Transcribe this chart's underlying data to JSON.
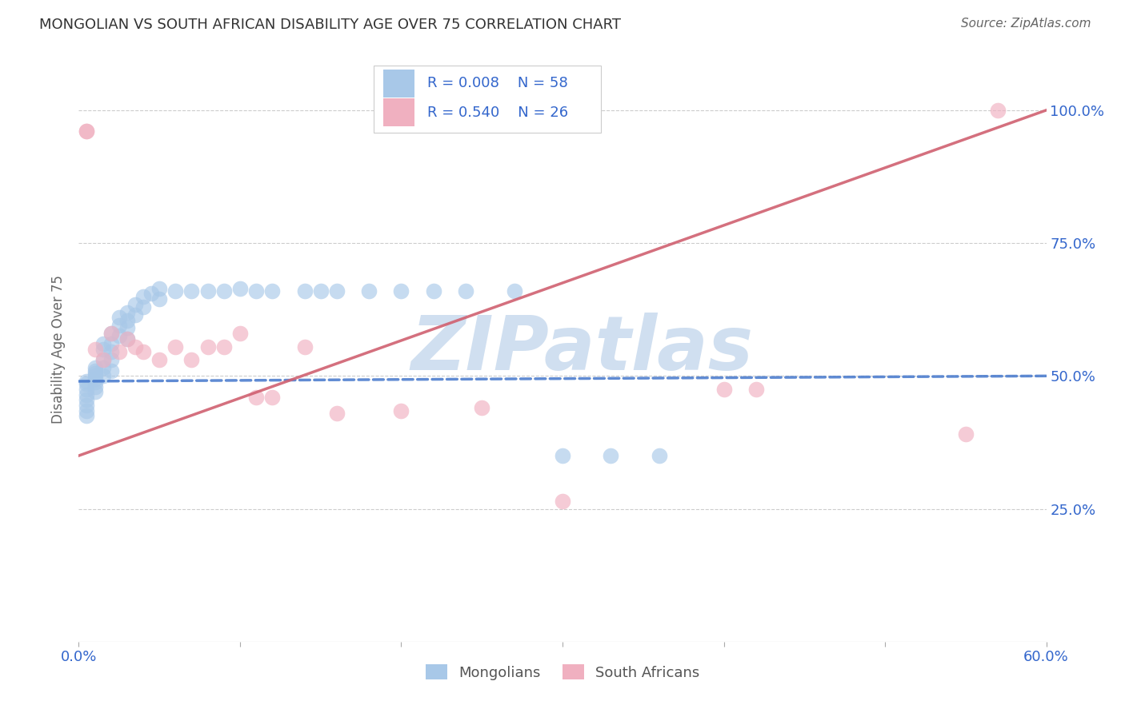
{
  "title": "MONGOLIAN VS SOUTH AFRICAN DISABILITY AGE OVER 75 CORRELATION CHART",
  "source": "Source: ZipAtlas.com",
  "ylabel": "Disability Age Over 75",
  "xlim": [
    0.0,
    0.6
  ],
  "ylim": [
    0.0,
    1.1
  ],
  "mongolian_R": 0.008,
  "mongolian_N": 58,
  "sa_R": 0.54,
  "sa_N": 26,
  "blue_color": "#a8c8e8",
  "pink_color": "#f0b0c0",
  "blue_line_color": "#4477cc",
  "pink_line_color": "#d06070",
  "tick_label_color": "#3366cc",
  "axis_label_color": "#666666",
  "title_color": "#333333",
  "source_color": "#666666",
  "grid_color": "#cccccc",
  "watermark": "ZIPatlas",
  "watermark_color": "#d0dff0",
  "mongolian_x": [
    0.005,
    0.005,
    0.005,
    0.005,
    0.005,
    0.005,
    0.005,
    0.005,
    0.01,
    0.01,
    0.01,
    0.01,
    0.01,
    0.01,
    0.01,
    0.01,
    0.015,
    0.015,
    0.015,
    0.015,
    0.015,
    0.02,
    0.02,
    0.02,
    0.02,
    0.02,
    0.025,
    0.025,
    0.025,
    0.03,
    0.03,
    0.03,
    0.03,
    0.035,
    0.035,
    0.04,
    0.04,
    0.045,
    0.05,
    0.05,
    0.06,
    0.07,
    0.08,
    0.09,
    0.1,
    0.11,
    0.12,
    0.14,
    0.15,
    0.16,
    0.18,
    0.2,
    0.22,
    0.24,
    0.27,
    0.3,
    0.33,
    0.36
  ],
  "mongolian_y": [
    0.49,
    0.485,
    0.475,
    0.465,
    0.455,
    0.445,
    0.435,
    0.425,
    0.5,
    0.51,
    0.515,
    0.505,
    0.495,
    0.488,
    0.48,
    0.47,
    0.56,
    0.55,
    0.53,
    0.515,
    0.5,
    0.58,
    0.56,
    0.545,
    0.53,
    0.51,
    0.61,
    0.595,
    0.575,
    0.62,
    0.605,
    0.59,
    0.57,
    0.635,
    0.615,
    0.65,
    0.63,
    0.655,
    0.665,
    0.645,
    0.66,
    0.66,
    0.66,
    0.66,
    0.665,
    0.66,
    0.66,
    0.66,
    0.66,
    0.66,
    0.66,
    0.66,
    0.66,
    0.66,
    0.66,
    0.35,
    0.35,
    0.35
  ],
  "sa_x": [
    0.005,
    0.005,
    0.01,
    0.015,
    0.02,
    0.025,
    0.03,
    0.035,
    0.04,
    0.05,
    0.06,
    0.07,
    0.08,
    0.09,
    0.1,
    0.11,
    0.12,
    0.14,
    0.16,
    0.2,
    0.25,
    0.3,
    0.4,
    0.42,
    0.55,
    0.57
  ],
  "sa_y": [
    0.96,
    0.96,
    0.55,
    0.53,
    0.58,
    0.545,
    0.57,
    0.555,
    0.545,
    0.53,
    0.555,
    0.53,
    0.555,
    0.555,
    0.58,
    0.46,
    0.46,
    0.555,
    0.43,
    0.435,
    0.44,
    0.265,
    0.475,
    0.475,
    0.39,
    1.0
  ],
  "blue_trend_x": [
    0.0,
    0.6
  ],
  "blue_trend_y": [
    0.49,
    0.5
  ],
  "pink_trend_x": [
    0.0,
    0.6
  ],
  "pink_trend_y": [
    0.35,
    1.0
  ]
}
